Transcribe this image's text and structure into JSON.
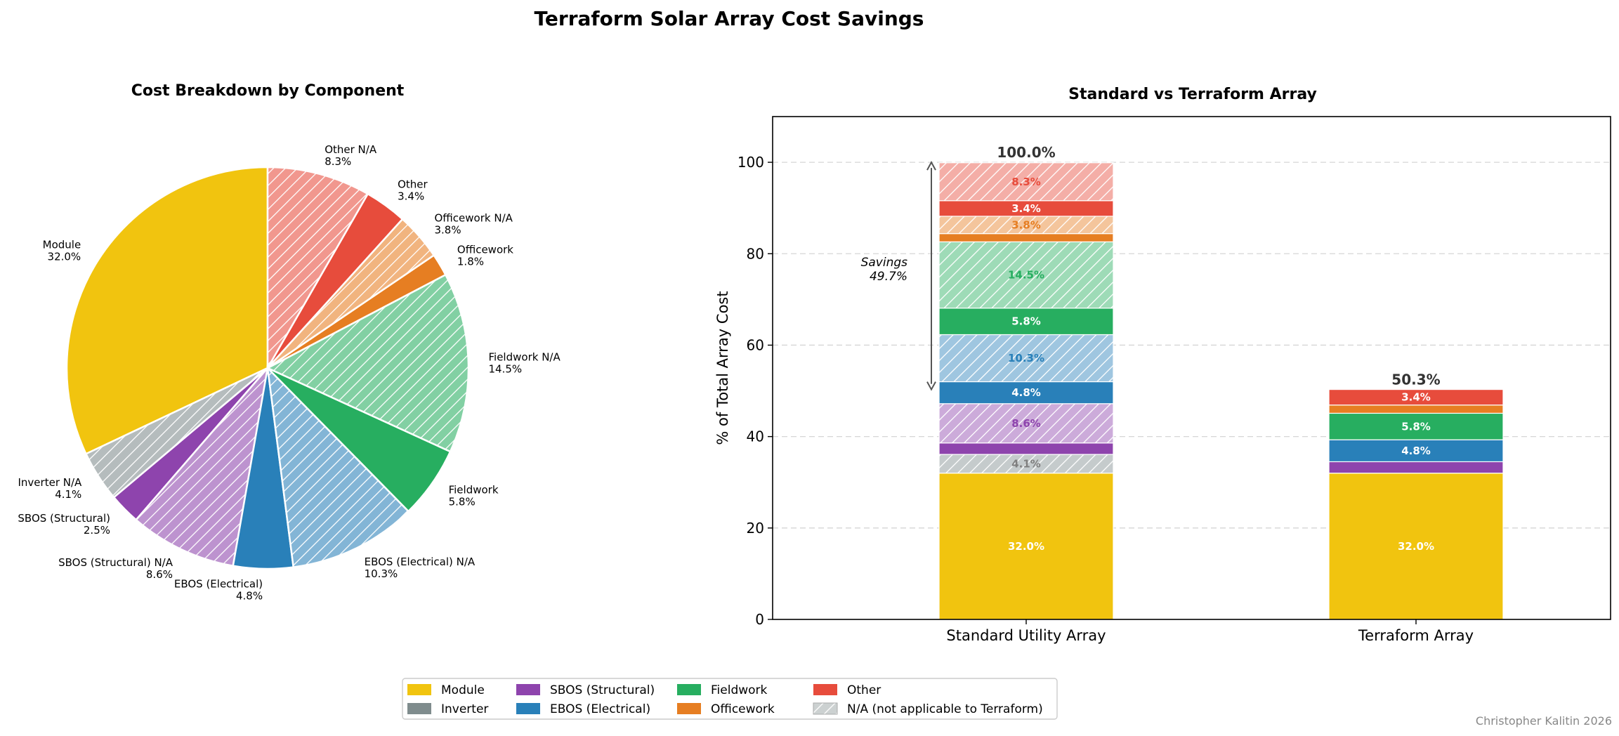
{
  "figure": {
    "title": "Terraform Solar Array Cost Savings",
    "credit": "Christopher Kalitin 2026"
  },
  "colors": {
    "Module": "#F1C40F",
    "Inverter": "#7F8C8D",
    "SBOS (Structural)": "#8E44AD",
    "EBOS (Electrical)": "#2980B9",
    "Fieldwork": "#27AE60",
    "Officework": "#E67E22",
    "Other": "#E74C3C"
  },
  "chart_data": [
    {
      "type": "pie",
      "title": "Cost Breakdown by Component",
      "start": "top, counterclockwise",
      "slices": [
        {
          "label": "Module",
          "value": 32.0,
          "value_label": "32.0%",
          "category": "Module",
          "na": false
        },
        {
          "label": "Inverter N/A",
          "value": 4.1,
          "value_label": "4.1%",
          "category": "Inverter",
          "na": true
        },
        {
          "label": "SBOS (Structural)",
          "value": 2.5,
          "value_label": "2.5%",
          "category": "SBOS (Structural)",
          "na": false
        },
        {
          "label": "SBOS (Structural) N/A",
          "value": 8.6,
          "value_label": "8.6%",
          "category": "SBOS (Structural)",
          "na": true
        },
        {
          "label": "EBOS (Electrical)",
          "value": 4.8,
          "value_label": "4.8%",
          "category": "EBOS (Electrical)",
          "na": false
        },
        {
          "label": "EBOS (Electrical) N/A",
          "value": 10.3,
          "value_label": "10.3%",
          "category": "EBOS (Electrical)",
          "na": true
        },
        {
          "label": "Fieldwork",
          "value": 5.8,
          "value_label": "5.8%",
          "category": "Fieldwork",
          "na": false
        },
        {
          "label": "Fieldwork N/A",
          "value": 14.5,
          "value_label": "14.5%",
          "category": "Fieldwork",
          "na": true
        },
        {
          "label": "Officework",
          "value": 1.8,
          "value_label": "1.8%",
          "category": "Officework",
          "na": false
        },
        {
          "label": "Officework N/A",
          "value": 3.8,
          "value_label": "3.8%",
          "category": "Officework",
          "na": true
        },
        {
          "label": "Other",
          "value": 3.4,
          "value_label": "3.4%",
          "category": "Other",
          "na": false
        },
        {
          "label": "Other N/A",
          "value": 8.3,
          "value_label": "8.3%",
          "category": "Other",
          "na": true
        }
      ]
    },
    {
      "type": "bar",
      "stacked": true,
      "title": "Standard vs Terraform Array",
      "ylabel": "% of Total Array Cost",
      "xlabel": "",
      "ylim": [
        0,
        110
      ],
      "yticks": [
        0,
        20,
        40,
        60,
        80,
        100
      ],
      "grid": "y, dashed",
      "categories": [
        "Standard Utility Array",
        "Terraform Array"
      ],
      "totals": [
        100.0,
        50.3
      ],
      "total_labels": [
        "100.0%",
        "50.3%"
      ],
      "series": [
        {
          "name": "Module",
          "category": "Module",
          "na": false,
          "values": [
            32.0,
            32.0
          ],
          "labels": [
            "32.0%",
            "32.0%"
          ]
        },
        {
          "name": "Inverter N/A",
          "category": "Inverter",
          "na": true,
          "values": [
            4.1,
            0
          ],
          "labels": [
            "4.1%",
            ""
          ]
        },
        {
          "name": "SBOS (Structural)",
          "category": "SBOS (Structural)",
          "na": false,
          "values": [
            2.5,
            2.5
          ],
          "labels": [
            "",
            ""
          ]
        },
        {
          "name": "SBOS (Structural) N/A",
          "category": "SBOS (Structural)",
          "na": true,
          "values": [
            8.6,
            0
          ],
          "labels": [
            "8.6%",
            ""
          ]
        },
        {
          "name": "EBOS (Electrical)",
          "category": "EBOS (Electrical)",
          "na": false,
          "values": [
            4.8,
            4.8
          ],
          "labels": [
            "4.8%",
            "4.8%"
          ]
        },
        {
          "name": "EBOS (Electrical) N/A",
          "category": "EBOS (Electrical)",
          "na": true,
          "values": [
            10.3,
            0
          ],
          "labels": [
            "10.3%",
            ""
          ]
        },
        {
          "name": "Fieldwork",
          "category": "Fieldwork",
          "na": false,
          "values": [
            5.8,
            5.8
          ],
          "labels": [
            "5.8%",
            "5.8%"
          ]
        },
        {
          "name": "Fieldwork N/A",
          "category": "Fieldwork",
          "na": true,
          "values": [
            14.5,
            0
          ],
          "labels": [
            "14.5%",
            ""
          ]
        },
        {
          "name": "Officework",
          "category": "Officework",
          "na": false,
          "values": [
            1.8,
            1.8
          ],
          "labels": [
            "",
            ""
          ]
        },
        {
          "name": "Officework N/A",
          "category": "Officework",
          "na": true,
          "values": [
            3.8,
            0
          ],
          "labels": [
            "3.8%",
            ""
          ]
        },
        {
          "name": "Other",
          "category": "Other",
          "na": false,
          "values": [
            3.4,
            3.4
          ],
          "labels": [
            "3.4%",
            "3.4%"
          ]
        },
        {
          "name": "Other N/A",
          "category": "Other",
          "na": true,
          "values": [
            8.3,
            0
          ],
          "labels": [
            "8.3%",
            ""
          ]
        }
      ],
      "annotation": {
        "text_line1": "Savings",
        "text_line2": "49.7%",
        "from": 50.3,
        "to": 100.0
      }
    }
  ],
  "legend": {
    "placement": "bottom-center",
    "entries": [
      {
        "label": "Module",
        "color": "#F1C40F",
        "hatch": false
      },
      {
        "label": "Inverter",
        "color": "#7F8C8D",
        "hatch": false
      },
      {
        "label": "SBOS (Structural)",
        "color": "#8E44AD",
        "hatch": false
      },
      {
        "label": "EBOS (Electrical)",
        "color": "#2980B9",
        "hatch": false
      },
      {
        "label": "Fieldwork",
        "color": "#27AE60",
        "hatch": false
      },
      {
        "label": "Officework",
        "color": "#E67E22",
        "hatch": false
      },
      {
        "label": "Other",
        "color": "#E74C3C",
        "hatch": false
      },
      {
        "label": "N/A (not applicable to Terraform)",
        "color": "#C8C8C8",
        "hatch": true
      }
    ]
  }
}
